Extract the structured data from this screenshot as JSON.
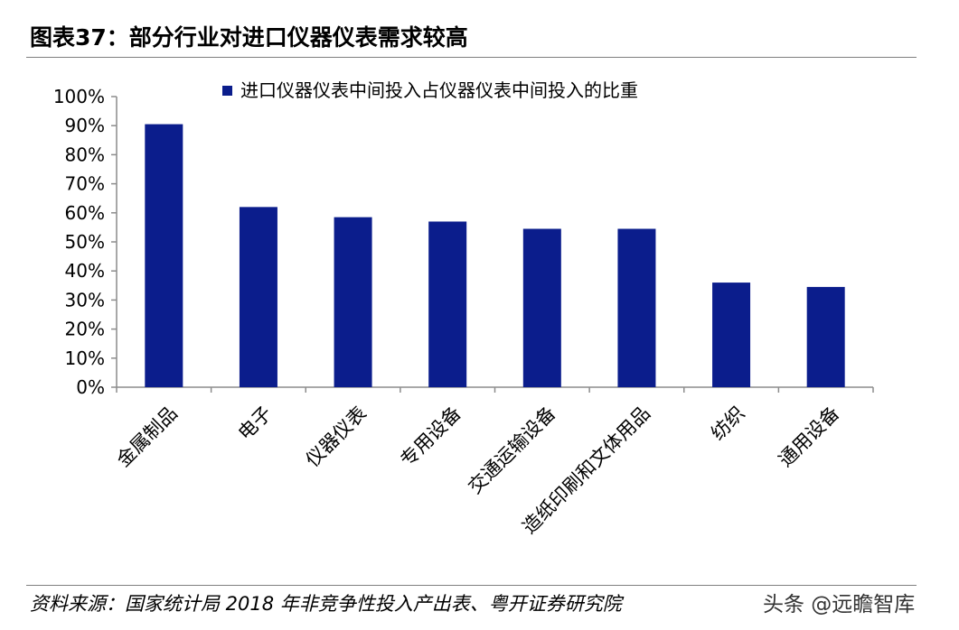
{
  "header": {
    "title": "图表37：部分行业对进口仪器仪表需求较高"
  },
  "footer": {
    "source": "资料来源：国家统计局 2018 年非竞争性投入产出表、粤开证券研究院",
    "watermark": "头条 @远瞻智库"
  },
  "colors": {
    "bar": "#0b1d8c",
    "axis": "#8c8c8c",
    "rule": "#7f7f7f"
  },
  "chart_data": {
    "type": "bar",
    "title": "",
    "xlabel": "",
    "ylabel": "",
    "ylim": [
      0,
      100
    ],
    "y_ticks": [
      0,
      10,
      20,
      30,
      40,
      50,
      60,
      70,
      80,
      90,
      100
    ],
    "y_tick_labels": [
      "0%",
      "10%",
      "20%",
      "30%",
      "40%",
      "50%",
      "60%",
      "70%",
      "80%",
      "90%",
      "100%"
    ],
    "categories": [
      "金属制品",
      "电子",
      "仪器仪表",
      "专用设备",
      "交通运输设备",
      "造纸印刷和文体用品",
      "纺织",
      "通用设备"
    ],
    "series": [
      {
        "name": "进口仪器仪表中间投入占仪器仪表中间投入的比重",
        "values": [
          90.5,
          62,
          58.5,
          57,
          54.5,
          54.5,
          36,
          34.5
        ]
      }
    ],
    "legend_position": "top",
    "grid": false
  }
}
